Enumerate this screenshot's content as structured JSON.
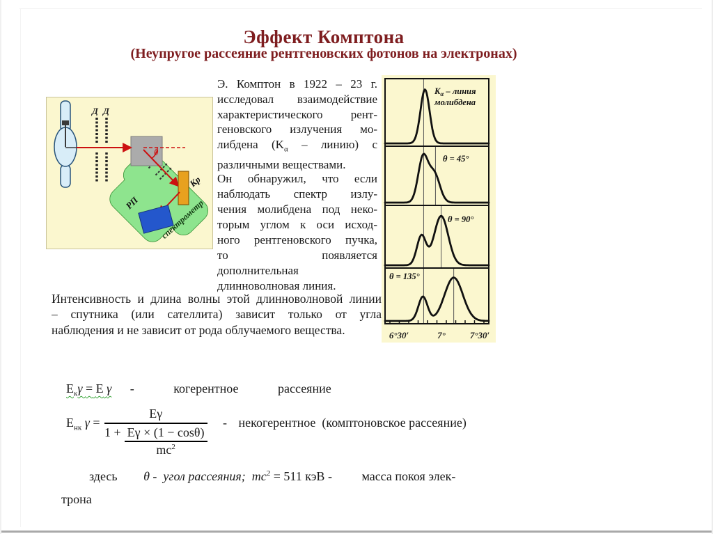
{
  "slide": {
    "title": "Эффект Комптона",
    "subtitle": "(Неупругое рассеяние рентгеновских фотонов на электронах)"
  },
  "intro": {
    "p1_lines": [
      "Э. Комптон в 1922 – 23 г.",
      "исследовал взаимодействие",
      "характеристического рент-",
      "геновского излучения мо-"
    ],
    "p1_line5": {
      "a": "либдена (K",
      "sub": "α",
      "b": " – линию) с"
    },
    "p1_line6": "различными веществами.",
    "p2_lines": [
      "Он обнаружил, что если",
      "наблюдать спектр излу-",
      "чения молибдена под неко-",
      "торым углом к оси исход-",
      "ного рентгеновского пучка,",
      "то появляется",
      "дополнительная",
      "длинноволновая линия."
    ],
    "note_lines": [
      "Интенсивность и длина волны этой длинноволновой линии",
      "– спутника (или сателлита) зависит только от угла",
      "наблюдения и не зависит от рода облучаемого вещества."
    ]
  },
  "diagram": {
    "labels": {
      "slit_left": "Д",
      "slit_right": "Д",
      "theta": "θ",
      "crystal": "Кр",
      "detector": "РП",
      "spectrometer": "спектрометр"
    },
    "colors": {
      "background": "#FBF7CF",
      "tube": "#D8EDF8",
      "scatterer": "#ABABAB",
      "spectrometer_body": "#8EE48E",
      "crystal": "#E8A11F",
      "detector": "#2457CC",
      "beam": "#CC1111"
    }
  },
  "chart_data": {
    "type": "line",
    "x_ticks": [
      "6°30′",
      "7°",
      "7°30′"
    ],
    "panels": [
      {
        "label_k": "K",
        "label_alpha": "α",
        "label_rest": " – линия",
        "label_line2": "молибдена",
        "peaks": [
          {
            "x": 0.385,
            "height": 0.92,
            "sigma": 0.044
          }
        ],
        "ref_lines": [
          0.372
        ]
      },
      {
        "label": "θ = 45°",
        "peaks": [
          {
            "x": 0.365,
            "height": 0.88,
            "sigma": 0.047
          },
          {
            "x": 0.473,
            "height": 0.58,
            "sigma": 0.054
          }
        ],
        "ref_lines": [
          0.372,
          0.486
        ]
      },
      {
        "label": "θ = 90°",
        "peaks": [
          {
            "x": 0.351,
            "height": 0.55,
            "sigma": 0.044
          },
          {
            "x": 0.541,
            "height": 0.92,
            "sigma": 0.068
          }
        ],
        "ref_lines": [
          0.372,
          0.541
        ]
      },
      {
        "label": "θ = 135°",
        "peaks": [
          {
            "x": 0.365,
            "height": 0.52,
            "sigma": 0.044
          },
          {
            "x": 0.662,
            "height": 0.93,
            "sigma": 0.088
          }
        ],
        "ref_lines": [
          0.372,
          0.662
        ]
      }
    ]
  },
  "formulas": {
    "coherent": {
      "lhs_E": "E",
      "lhs_sub": "к",
      "lhs_gamma": "γ",
      "eq": "=",
      "rhs_E": "E",
      "rhs_gamma": "γ",
      "dash": "-",
      "label_1": "когерентное",
      "label_2": "рассеяние"
    },
    "incoherent": {
      "lhs_E": "E",
      "lhs_sub": "нк",
      "lhs_gamma": "γ",
      "eq": "=",
      "num": "Eγ",
      "den_prefix": "1 +",
      "inner_num": "Eγ × (1 − cosθ)",
      "inner_den_base": "mc",
      "inner_den_exp": "2",
      "dash": "-",
      "label": "некогерентное  (комптоновское рассеяние)"
    },
    "note": {
      "here": "здесь",
      "theta_part": "θ -  угол рассеяния;  mc",
      "exp": "2",
      "value_part": " = 511 кэВ -",
      "mass_part": "масса покоя элек-",
      "cont": "трона"
    }
  }
}
